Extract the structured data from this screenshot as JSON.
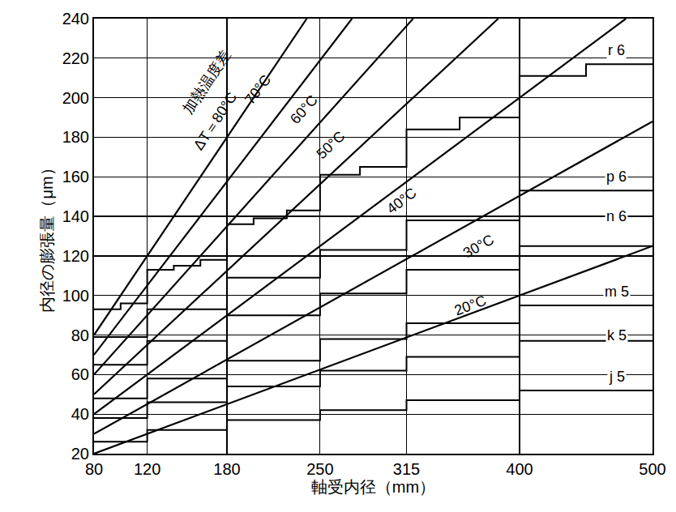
{
  "chart_data": {
    "type": "line",
    "x_label": "軸受内径（mm）",
    "y_label": "内径の膨張量（μm）",
    "xlim": [
      80,
      500
    ],
    "xticks": [
      80,
      120,
      180,
      250,
      315,
      400,
      500
    ],
    "ylim": [
      20,
      240
    ],
    "yticks": [
      20,
      40,
      60,
      80,
      100,
      120,
      140,
      160,
      180,
      200,
      220,
      240
    ],
    "grid": true,
    "color": "#000000",
    "annotations": [
      {
        "text": "加熱温度差",
        "x": 165,
        "y": 208
      }
    ],
    "series": [
      {
        "name": "ΔT＝80°C",
        "type": "line",
        "x": [
          80,
          240
        ],
        "values": [
          80,
          240
        ],
        "label_at": [
          171,
          188
        ]
      },
      {
        "name": "70°C",
        "type": "line",
        "x": [
          80,
          274
        ],
        "values": [
          70,
          240
        ],
        "label_at": [
          203,
          204
        ]
      },
      {
        "name": "60°C",
        "type": "line",
        "x": [
          80,
          320
        ],
        "values": [
          60,
          240
        ],
        "label_at": [
          238,
          194
        ]
      },
      {
        "name": "50°C",
        "type": "line",
        "x": [
          80,
          384
        ],
        "values": [
          50,
          240
        ],
        "label_at": [
          258,
          176
        ]
      },
      {
        "name": "40°C",
        "type": "line",
        "x": [
          80,
          480
        ],
        "values": [
          40,
          240
        ],
        "label_at": [
          311,
          148
        ]
      },
      {
        "name": "30°C",
        "type": "line",
        "x": [
          80,
          500
        ],
        "values": [
          30,
          188
        ],
        "label_at": [
          369,
          125
        ]
      },
      {
        "name": "20°C",
        "type": "line",
        "x": [
          80,
          500
        ],
        "values": [
          20,
          125
        ],
        "label_at": [
          363,
          95
        ]
      },
      {
        "name": "r 6",
        "type": "step",
        "x": [
          80,
          100,
          120,
          140,
          160,
          180,
          200,
          225,
          250,
          280,
          315,
          355,
          400,
          450,
          500
        ],
        "values": [
          93,
          96,
          113,
          115,
          118,
          136,
          139,
          143,
          161,
          165,
          184,
          190,
          211,
          217,
          217
        ],
        "label_at": [
          473,
          224
        ]
      },
      {
        "name": "p 6",
        "type": "step",
        "x": [
          80,
          120,
          180,
          250,
          315,
          400,
          500
        ],
        "values": [
          79,
          93,
          109,
          123,
          138,
          153,
          153
        ],
        "label_at": [
          473,
          160
        ]
      },
      {
        "name": "n 6",
        "type": "step",
        "x": [
          80,
          120,
          180,
          250,
          315,
          400,
          500
        ],
        "values": [
          65,
          77,
          90,
          101,
          113,
          125,
          125
        ],
        "label_at": [
          473,
          140
        ]
      },
      {
        "name": "m 5",
        "type": "step",
        "x": [
          80,
          120,
          180,
          250,
          315,
          400,
          500
        ],
        "values": [
          48,
          58,
          67,
          78,
          86,
          95,
          95
        ],
        "label_at": [
          473,
          102
        ]
      },
      {
        "name": "k 5",
        "type": "step",
        "x": [
          80,
          120,
          180,
          250,
          315,
          400,
          500
        ],
        "values": [
          38,
          46,
          54,
          62,
          69,
          77,
          77
        ],
        "label_at": [
          473,
          80
        ]
      },
      {
        "name": "j 5",
        "type": "step",
        "x": [
          80,
          120,
          180,
          250,
          315,
          400,
          500
        ],
        "values": [
          26,
          32,
          37,
          42,
          47,
          52,
          52
        ],
        "label_at": [
          473,
          59
        ]
      }
    ]
  }
}
